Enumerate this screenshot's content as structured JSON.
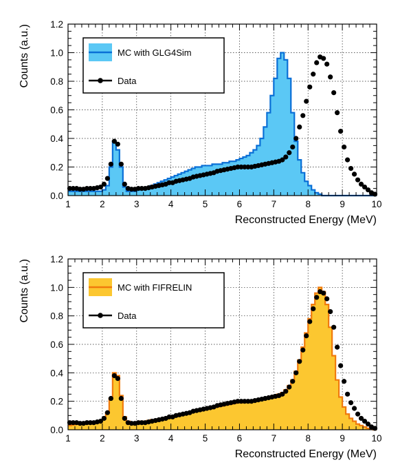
{
  "chart_data": [
    {
      "type": "histogram_with_points",
      "title": "",
      "xlabel": "Reconstructed Energy (MeV)",
      "ylabel": "Counts (a.u.)",
      "xlim": [
        1,
        10
      ],
      "ylim": [
        0,
        1.2
      ],
      "x_ticks": [
        "1",
        "2",
        "3",
        "4",
        "5",
        "6",
        "7",
        "8",
        "9",
        "10"
      ],
      "y_ticks": [
        "0.0",
        "0.2",
        "0.4",
        "0.6",
        "0.8",
        "1.0",
        "1.2"
      ],
      "grid": true,
      "legend_position": "top-left",
      "colors": {
        "fill": "#5bc8f5",
        "line": "#0a6fd6",
        "points": "#000000"
      },
      "series": [
        {
          "name": "MC with GLG4Sim",
          "kind": "histogram",
          "bin_width": 0.1,
          "x_start": 1.0,
          "values": [
            0.03,
            0.03,
            0.03,
            0.03,
            0.03,
            0.03,
            0.03,
            0.03,
            0.03,
            0.03,
            0.04,
            0.07,
            0.2,
            0.38,
            0.32,
            0.2,
            0.06,
            0.03,
            0.03,
            0.03,
            0.04,
            0.05,
            0.05,
            0.06,
            0.07,
            0.08,
            0.09,
            0.1,
            0.11,
            0.12,
            0.13,
            0.14,
            0.15,
            0.16,
            0.17,
            0.18,
            0.19,
            0.2,
            0.2,
            0.21,
            0.21,
            0.21,
            0.22,
            0.22,
            0.22,
            0.23,
            0.23,
            0.24,
            0.24,
            0.25,
            0.26,
            0.27,
            0.28,
            0.3,
            0.32,
            0.35,
            0.4,
            0.48,
            0.58,
            0.7,
            0.82,
            0.96,
            1.0,
            0.95,
            0.82,
            0.58,
            0.38,
            0.25,
            0.16,
            0.1,
            0.07,
            0.04,
            0.02,
            0.01,
            0.0,
            0.0,
            0.0,
            0.0,
            0.0,
            0.0,
            0.0,
            0.0,
            0.0,
            0.0,
            0.0,
            0.0,
            0.0,
            0.0,
            0.0,
            0.0
          ]
        },
        {
          "name": "Data",
          "kind": "points",
          "x": [
            1.0,
            1.1,
            1.2,
            1.3,
            1.4,
            1.5,
            1.6,
            1.7,
            1.8,
            1.9,
            2.0,
            2.1,
            2.2,
            2.3,
            2.4,
            2.5,
            2.6,
            2.7,
            2.8,
            2.9,
            3.0,
            3.1,
            3.2,
            3.3,
            3.4,
            3.5,
            3.6,
            3.7,
            3.8,
            3.9,
            4.0,
            4.1,
            4.2,
            4.3,
            4.4,
            4.5,
            4.6,
            4.7,
            4.8,
            4.9,
            5.0,
            5.1,
            5.2,
            5.3,
            5.4,
            5.5,
            5.6,
            5.7,
            5.8,
            5.9,
            6.0,
            6.1,
            6.2,
            6.3,
            6.4,
            6.5,
            6.6,
            6.7,
            6.8,
            6.9,
            7.0,
            7.1,
            7.2,
            7.3,
            7.4,
            7.5,
            7.6,
            7.7,
            7.8,
            7.9,
            8.0,
            8.1,
            8.2,
            8.3,
            8.4,
            8.5,
            8.6,
            8.7,
            8.8,
            8.9,
            9.0,
            9.1,
            9.2,
            9.3,
            9.4,
            9.5,
            9.6,
            9.7,
            9.8,
            9.9
          ],
          "y": [
            0.05,
            0.05,
            0.05,
            0.045,
            0.045,
            0.05,
            0.05,
            0.05,
            0.055,
            0.06,
            0.08,
            0.12,
            0.22,
            0.38,
            0.36,
            0.22,
            0.08,
            0.05,
            0.045,
            0.045,
            0.05,
            0.05,
            0.05,
            0.055,
            0.06,
            0.065,
            0.07,
            0.075,
            0.08,
            0.09,
            0.09,
            0.1,
            0.105,
            0.11,
            0.115,
            0.12,
            0.13,
            0.135,
            0.14,
            0.145,
            0.15,
            0.155,
            0.16,
            0.17,
            0.175,
            0.18,
            0.185,
            0.19,
            0.195,
            0.2,
            0.2,
            0.2,
            0.2,
            0.2,
            0.205,
            0.21,
            0.215,
            0.22,
            0.225,
            0.23,
            0.235,
            0.24,
            0.25,
            0.27,
            0.3,
            0.34,
            0.4,
            0.48,
            0.56,
            0.66,
            0.76,
            0.85,
            0.93,
            0.97,
            0.96,
            0.92,
            0.83,
            0.72,
            0.58,
            0.45,
            0.34,
            0.25,
            0.19,
            0.15,
            0.11,
            0.08,
            0.06,
            0.04,
            0.02,
            0.01
          ]
        }
      ]
    },
    {
      "type": "histogram_with_points",
      "title": "",
      "xlabel": "Reconstructed Energy (MeV)",
      "ylabel": "Counts (a.u.)",
      "xlim": [
        1,
        10
      ],
      "ylim": [
        0,
        1.2
      ],
      "x_ticks": [
        "1",
        "2",
        "3",
        "4",
        "5",
        "6",
        "7",
        "8",
        "9",
        "10"
      ],
      "y_ticks": [
        "0.0",
        "0.2",
        "0.4",
        "0.6",
        "0.8",
        "1.0",
        "1.2"
      ],
      "grid": true,
      "legend_position": "top-left",
      "colors": {
        "fill": "#fcc730",
        "line": "#f07a0c",
        "points": "#000000"
      },
      "series": [
        {
          "name": "MC with FIFRELIN",
          "kind": "histogram",
          "bin_width": 0.1,
          "x_start": 1.0,
          "values": [
            0.03,
            0.035,
            0.04,
            0.04,
            0.04,
            0.045,
            0.05,
            0.05,
            0.055,
            0.06,
            0.08,
            0.12,
            0.22,
            0.4,
            0.38,
            0.24,
            0.09,
            0.06,
            0.05,
            0.05,
            0.055,
            0.06,
            0.06,
            0.065,
            0.07,
            0.07,
            0.075,
            0.08,
            0.085,
            0.09,
            0.095,
            0.1,
            0.105,
            0.11,
            0.115,
            0.12,
            0.125,
            0.13,
            0.135,
            0.14,
            0.145,
            0.15,
            0.155,
            0.16,
            0.165,
            0.17,
            0.175,
            0.18,
            0.185,
            0.19,
            0.19,
            0.195,
            0.2,
            0.2,
            0.205,
            0.21,
            0.215,
            0.22,
            0.225,
            0.23,
            0.24,
            0.25,
            0.26,
            0.28,
            0.31,
            0.35,
            0.41,
            0.49,
            0.58,
            0.68,
            0.78,
            0.88,
            0.96,
            1.0,
            0.97,
            0.88,
            0.72,
            0.52,
            0.35,
            0.23,
            0.16,
            0.11,
            0.08,
            0.06,
            0.04,
            0.03,
            0.02,
            0.01,
            0.005,
            0.0
          ]
        },
        {
          "name": "Data",
          "kind": "points",
          "x": [
            1.0,
            1.1,
            1.2,
            1.3,
            1.4,
            1.5,
            1.6,
            1.7,
            1.8,
            1.9,
            2.0,
            2.1,
            2.2,
            2.3,
            2.4,
            2.5,
            2.6,
            2.7,
            2.8,
            2.9,
            3.0,
            3.1,
            3.2,
            3.3,
            3.4,
            3.5,
            3.6,
            3.7,
            3.8,
            3.9,
            4.0,
            4.1,
            4.2,
            4.3,
            4.4,
            4.5,
            4.6,
            4.7,
            4.8,
            4.9,
            5.0,
            5.1,
            5.2,
            5.3,
            5.4,
            5.5,
            5.6,
            5.7,
            5.8,
            5.9,
            6.0,
            6.1,
            6.2,
            6.3,
            6.4,
            6.5,
            6.6,
            6.7,
            6.8,
            6.9,
            7.0,
            7.1,
            7.2,
            7.3,
            7.4,
            7.5,
            7.6,
            7.7,
            7.8,
            7.9,
            8.0,
            8.1,
            8.2,
            8.3,
            8.4,
            8.5,
            8.6,
            8.7,
            8.8,
            8.9,
            9.0,
            9.1,
            9.2,
            9.3,
            9.4,
            9.5,
            9.6,
            9.7,
            9.8,
            9.9
          ],
          "y": [
            0.05,
            0.05,
            0.05,
            0.045,
            0.045,
            0.05,
            0.05,
            0.05,
            0.055,
            0.06,
            0.08,
            0.12,
            0.22,
            0.38,
            0.36,
            0.22,
            0.08,
            0.05,
            0.045,
            0.045,
            0.05,
            0.05,
            0.05,
            0.055,
            0.06,
            0.065,
            0.07,
            0.075,
            0.08,
            0.09,
            0.09,
            0.1,
            0.105,
            0.11,
            0.115,
            0.12,
            0.13,
            0.135,
            0.14,
            0.145,
            0.15,
            0.155,
            0.16,
            0.17,
            0.175,
            0.18,
            0.185,
            0.19,
            0.195,
            0.2,
            0.2,
            0.2,
            0.2,
            0.2,
            0.205,
            0.21,
            0.215,
            0.22,
            0.225,
            0.23,
            0.235,
            0.24,
            0.25,
            0.27,
            0.3,
            0.34,
            0.4,
            0.48,
            0.56,
            0.66,
            0.76,
            0.85,
            0.93,
            0.97,
            0.96,
            0.92,
            0.83,
            0.72,
            0.58,
            0.45,
            0.34,
            0.25,
            0.19,
            0.15,
            0.11,
            0.08,
            0.06,
            0.04,
            0.02,
            0.01
          ]
        }
      ]
    }
  ]
}
